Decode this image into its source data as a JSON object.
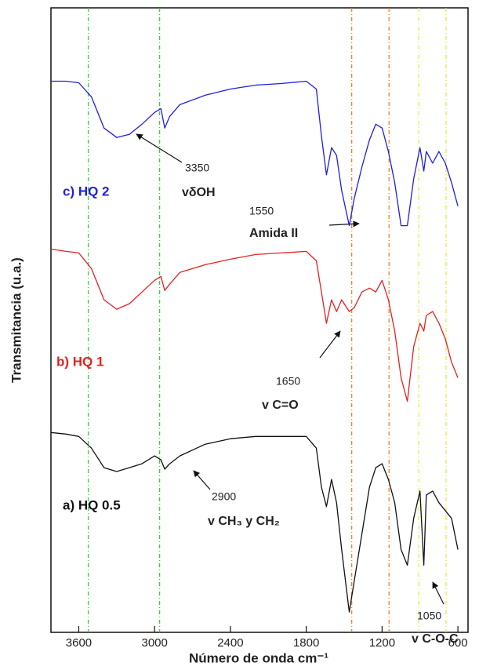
{
  "chart_data": {
    "type": "line",
    "xlabel": "Número de onda cm⁻¹",
    "ylabel": "Transmitancia (u.a.)",
    "xlim": [
      3820,
      520
    ],
    "ylim": [
      0,
      80
    ],
    "xticks": [
      3600,
      3000,
      2400,
      1800,
      1200,
      600
    ],
    "x": [
      3820,
      3700,
      3600,
      3500,
      3400,
      3300,
      3200,
      3100,
      3000,
      2950,
      2920,
      2880,
      2800,
      2600,
      2400,
      2200,
      2000,
      1800,
      1720,
      1680,
      1640,
      1600,
      1560,
      1520,
      1460,
      1420,
      1360,
      1300,
      1250,
      1200,
      1150,
      1100,
      1050,
      1000,
      950,
      900,
      870,
      850,
      800,
      750,
      700,
      650,
      600
    ],
    "series": [
      {
        "name": "c) HQ 2",
        "color": "#1f1fe0",
        "values": [
          70.6,
          70.6,
          70.4,
          68.6,
          64.6,
          63.4,
          63.8,
          65.1,
          66.6,
          67.1,
          64.6,
          66.1,
          67.6,
          68.8,
          69.6,
          70.1,
          70.3,
          70.6,
          69.6,
          63.6,
          58.6,
          62.1,
          61.1,
          56.6,
          52.1,
          55.6,
          59.6,
          63.1,
          65.1,
          64.6,
          61.6,
          57.6,
          52.1,
          52.1,
          58.1,
          62.1,
          59.1,
          61.6,
          60.1,
          61.6,
          60.1,
          57.6,
          54.6
        ]
      },
      {
        "name": "b) HQ 1",
        "color": "#e62020",
        "values": [
          49.1,
          48.8,
          48.6,
          46.6,
          42.6,
          41.4,
          42.1,
          43.6,
          45.1,
          45.6,
          43.8,
          44.6,
          46.1,
          47.1,
          47.8,
          48.4,
          48.6,
          48.8,
          47.6,
          43.6,
          39.6,
          42.6,
          41.1,
          42.6,
          41.1,
          41.6,
          43.6,
          44.1,
          43.6,
          45.1,
          42.6,
          38.6,
          32.6,
          29.6,
          36.6,
          39.6,
          38.6,
          40.6,
          41.1,
          39.6,
          37.6,
          34.6,
          32.6
        ]
      },
      {
        "name": "a) HQ 0.5",
        "color": "#111111",
        "values": [
          25.6,
          25.4,
          25.1,
          23.6,
          21.1,
          20.6,
          21.1,
          21.6,
          22.6,
          22.1,
          20.9,
          21.6,
          22.6,
          24.1,
          24.8,
          25.1,
          25.1,
          25.1,
          23.6,
          18.6,
          16.1,
          19.6,
          16.6,
          10.6,
          2.6,
          6.6,
          12.6,
          18.6,
          21.1,
          21.6,
          19.6,
          16.6,
          10.6,
          8.6,
          14.6,
          18.1,
          8.6,
          17.6,
          18.1,
          16.6,
          15.6,
          14.6,
          10.6
        ]
      }
    ],
    "reference_lines": [
      {
        "value": 3525,
        "color": "#33cc33"
      },
      {
        "value": 2960,
        "color": "#33cc33"
      },
      {
        "value": 1440,
        "color": "#e07b20"
      },
      {
        "value": 1145,
        "color": "#e07b20"
      },
      {
        "value": 910,
        "color": "#e8e830"
      },
      {
        "value": 694,
        "color": "#e8e830"
      }
    ],
    "annotations": [
      {
        "number": "3350",
        "label": "vδOH"
      },
      {
        "number": "1550",
        "label": "Amida II"
      },
      {
        "number": "1650",
        "label": "v C=O"
      },
      {
        "number": "2900",
        "label": "v CH₃ y CH₂"
      },
      {
        "number": "1050",
        "label": "v C-O-C"
      }
    ]
  }
}
